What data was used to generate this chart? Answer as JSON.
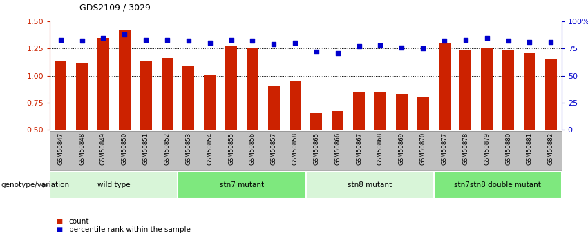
{
  "title": "GDS2109 / 3029",
  "samples": [
    "GSM50847",
    "GSM50848",
    "GSM50849",
    "GSM50850",
    "GSM50851",
    "GSM50852",
    "GSM50853",
    "GSM50854",
    "GSM50855",
    "GSM50856",
    "GSM50857",
    "GSM50858",
    "GSM50865",
    "GSM50866",
    "GSM50867",
    "GSM50868",
    "GSM50869",
    "GSM50870",
    "GSM50877",
    "GSM50878",
    "GSM50879",
    "GSM50880",
    "GSM50881",
    "GSM50882"
  ],
  "counts": [
    1.14,
    1.12,
    1.35,
    1.42,
    1.13,
    1.16,
    1.09,
    1.01,
    1.27,
    1.25,
    0.9,
    0.95,
    0.65,
    0.67,
    0.85,
    0.85,
    0.83,
    0.8,
    1.3,
    1.24,
    1.25,
    1.24,
    1.21,
    1.15
  ],
  "percentile_ranks": [
    83,
    82,
    85,
    88,
    83,
    83,
    82,
    80,
    83,
    82,
    79,
    80,
    72,
    71,
    77,
    78,
    76,
    75,
    82,
    83,
    85,
    82,
    81,
    81
  ],
  "groups": [
    {
      "label": "wild type",
      "start": 0,
      "end": 5,
      "color": "#d8f5d8"
    },
    {
      "label": "stn7 mutant",
      "start": 6,
      "end": 11,
      "color": "#7ee87e"
    },
    {
      "label": "stn8 mutant",
      "start": 12,
      "end": 17,
      "color": "#d8f5d8"
    },
    {
      "label": "stn7stn8 double mutant",
      "start": 18,
      "end": 23,
      "color": "#7ee87e"
    }
  ],
  "bar_color": "#cc2200",
  "dot_color": "#0000cc",
  "ylim_left": [
    0.5,
    1.5
  ],
  "ylim_right": [
    0,
    100
  ],
  "yticks_left": [
    0.5,
    0.75,
    1.0,
    1.25,
    1.5
  ],
  "ytick_labels_right": [
    "0",
    "25",
    "50",
    "75",
    "100%"
  ],
  "hlines": [
    0.75,
    1.0,
    1.25
  ],
  "genotype_label": "genotype/variation",
  "legend_items": [
    {
      "color": "#cc2200",
      "label": "count"
    },
    {
      "color": "#0000cc",
      "label": "percentile rank within the sample"
    }
  ],
  "bar_width": 0.55,
  "xtick_bg_color": "#c0c0c0",
  "xtick_border_color": "#888888"
}
